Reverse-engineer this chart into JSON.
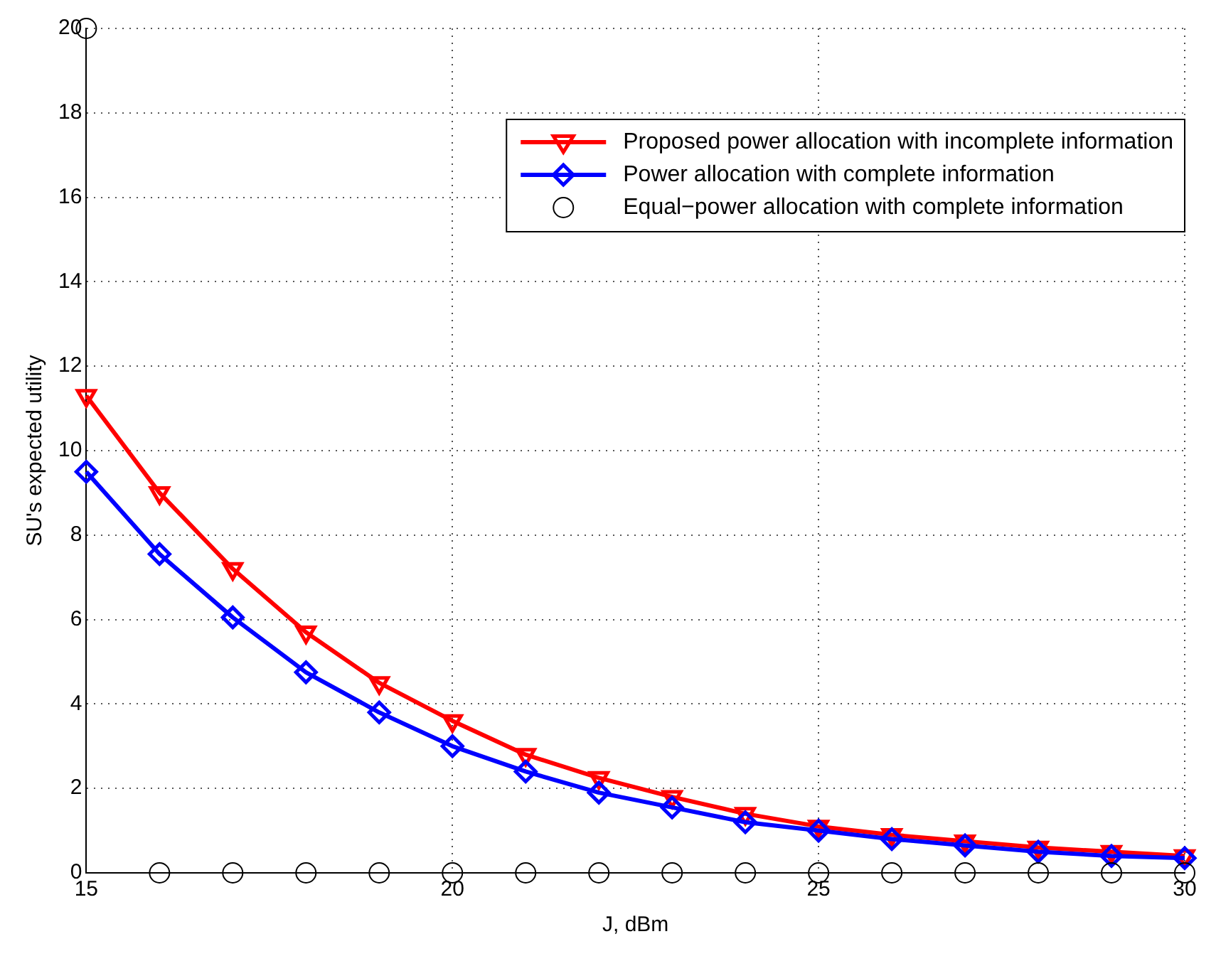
{
  "chart_data": {
    "type": "line",
    "xlabel": "J, dBm",
    "ylabel": "SU's expected utility",
    "x": [
      15,
      16,
      17,
      18,
      19,
      20,
      21,
      22,
      23,
      24,
      25,
      26,
      27,
      28,
      29,
      30
    ],
    "series": [
      {
        "name": "Proposed power allocation with incomplete information",
        "color": "#ff0000",
        "marker": "triangle",
        "values": [
          11.3,
          9.0,
          7.2,
          5.7,
          4.5,
          3.6,
          2.8,
          2.25,
          1.8,
          1.4,
          1.1,
          0.9,
          0.75,
          0.6,
          0.5,
          0.4
        ]
      },
      {
        "name": "Power allocation with complete information",
        "color": "#0000ff",
        "marker": "diamond",
        "values": [
          9.5,
          7.55,
          6.05,
          4.75,
          3.8,
          3.0,
          2.4,
          1.9,
          1.55,
          1.2,
          1.0,
          0.8,
          0.65,
          0.5,
          0.4,
          0.35
        ]
      },
      {
        "name": "Equal−power allocation with complete information",
        "color": "#000000",
        "type": "scatter",
        "marker": "circle",
        "values": [
          20,
          0,
          0,
          0,
          0,
          0,
          0,
          0,
          0,
          0,
          0,
          0,
          0,
          0,
          0,
          0
        ]
      }
    ],
    "xlim": [
      15,
      30
    ],
    "xticks": [
      15,
      20,
      25,
      30
    ],
    "ylim": [
      0,
      20
    ],
    "yticks": [
      0,
      2,
      4,
      6,
      8,
      10,
      12,
      14,
      16,
      18,
      20
    ],
    "grid": true,
    "legend": "top right"
  }
}
